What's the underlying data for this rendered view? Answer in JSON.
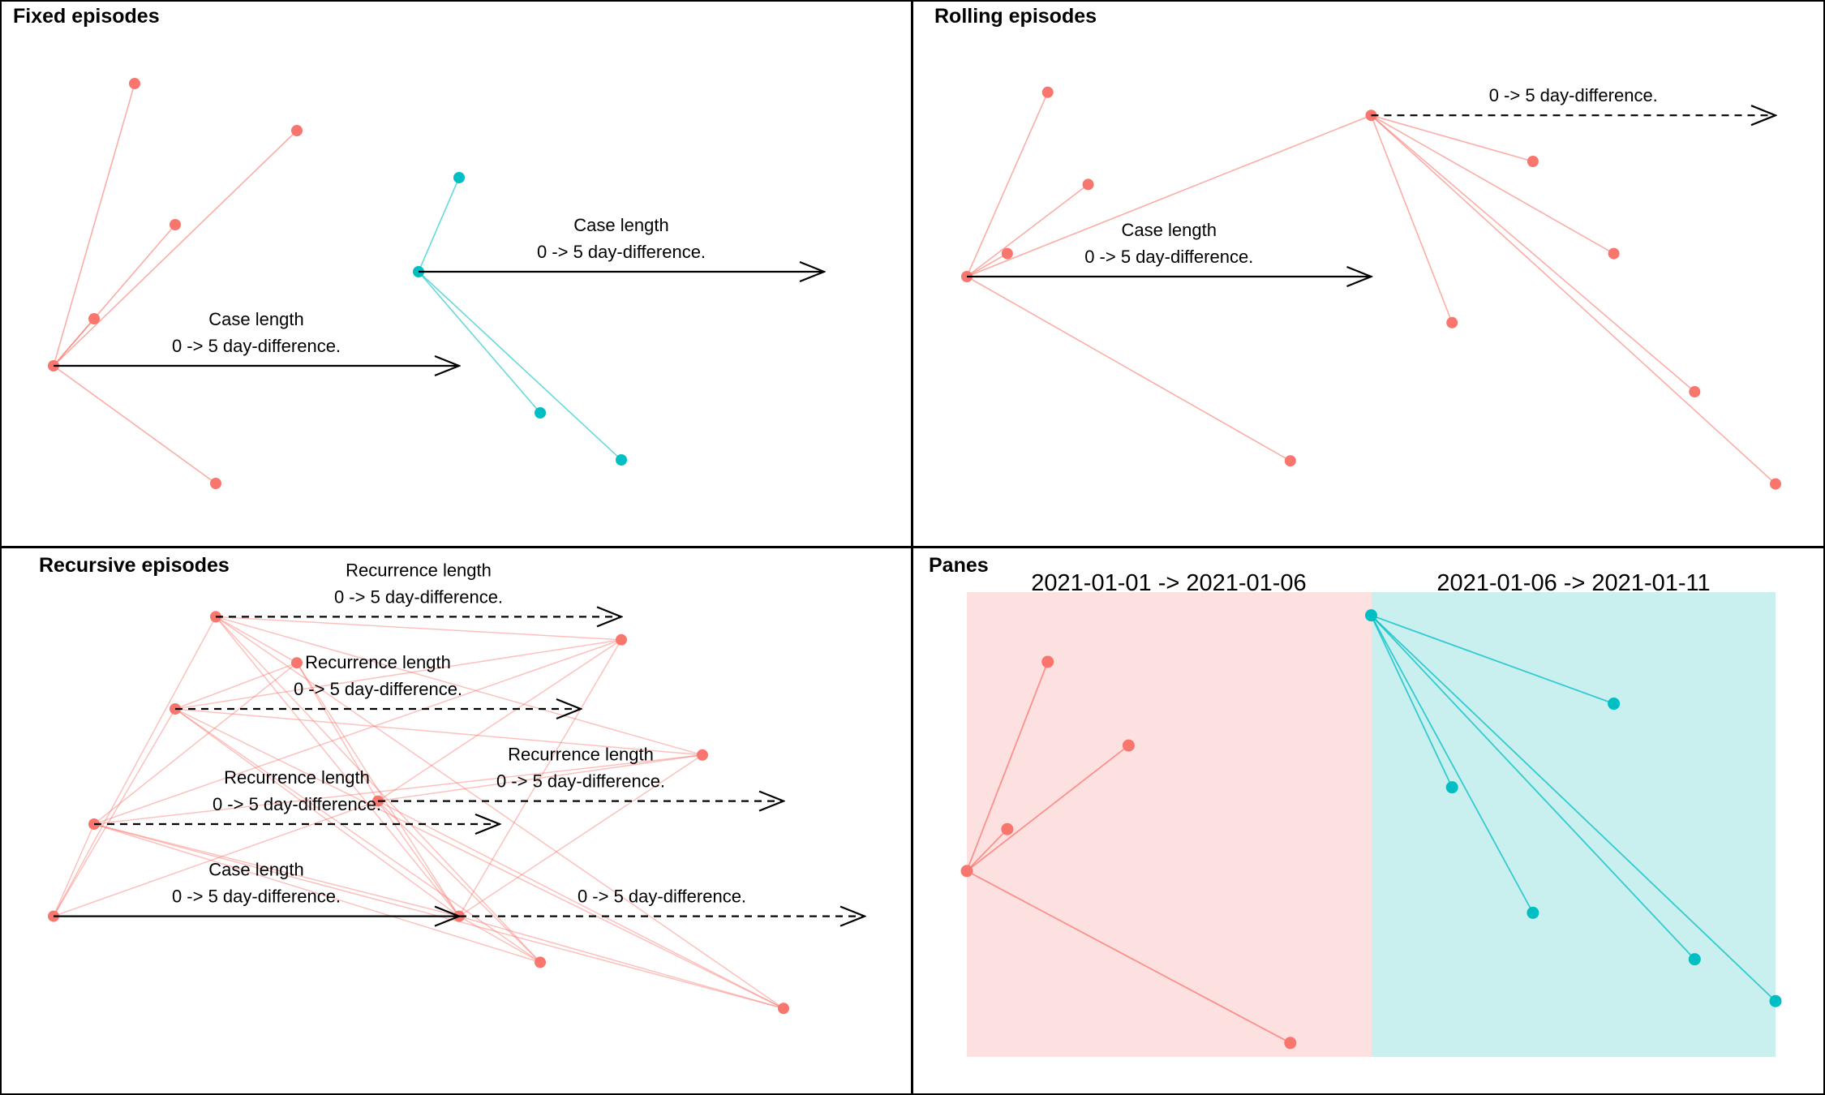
{
  "colors": {
    "red": "#F8766D",
    "teal": "#00BFC4",
    "red_pane": "#FDE1E0",
    "teal_pane": "#C9EFEF",
    "border": "#000000"
  },
  "panels": [
    {
      "id": "fixed",
      "title": "Fixed episodes",
      "points": [
        [
          0,
          0.3
        ],
        [
          0.5,
          0.4
        ],
        [
          1,
          0.9
        ],
        [
          1.5,
          0.6
        ],
        [
          2,
          0.05
        ],
        [
          3,
          0.8
        ],
        [
          4.5,
          0.5
        ],
        [
          5,
          0.7
        ],
        [
          6,
          0.2
        ],
        [
          7,
          0.1
        ]
      ],
      "point_colors": [
        "red",
        "red",
        "red",
        "red",
        "red",
        "red",
        "teal",
        "teal",
        "teal",
        "teal"
      ],
      "edges": [
        [
          0,
          1
        ],
        [
          0,
          2
        ],
        [
          0,
          3
        ],
        [
          0,
          4
        ],
        [
          0,
          5
        ],
        [
          6,
          7
        ],
        [
          6,
          8
        ],
        [
          6,
          9
        ]
      ],
      "edge_colors": [
        "red",
        "red",
        "red",
        "red",
        "red",
        "teal",
        "teal",
        "teal"
      ],
      "arrows": [
        {
          "from": 0,
          "days": 5,
          "style": "solid",
          "label": "Case length",
          "sublabel": "0 -> 5 day-difference."
        },
        {
          "from": 6,
          "days": 5,
          "style": "solid",
          "label": "Case length",
          "sublabel": "0 -> 5 day-difference."
        }
      ]
    },
    {
      "id": "rolling",
      "title": "Rolling episodes",
      "points": [
        [
          0,
          0.5
        ],
        [
          1,
          0.9
        ],
        [
          1.5,
          0.7
        ],
        [
          0.5,
          0.55
        ],
        [
          4,
          0.1
        ],
        [
          5,
          0.85
        ],
        [
          8,
          0.55
        ],
        [
          7,
          0.75
        ],
        [
          6,
          0.4
        ],
        [
          9,
          0.25
        ],
        [
          10,
          0.05
        ]
      ],
      "point_colors": [
        "red",
        "red",
        "red",
        "red",
        "red",
        "red",
        "red",
        "red",
        "red",
        "red",
        "red"
      ],
      "edges": [
        [
          0,
          1
        ],
        [
          0,
          2
        ],
        [
          0,
          3
        ],
        [
          0,
          4
        ],
        [
          0,
          5
        ],
        [
          5,
          6
        ],
        [
          5,
          7
        ],
        [
          5,
          8
        ],
        [
          5,
          9
        ],
        [
          5,
          10
        ]
      ],
      "edge_colors": [
        "red",
        "red",
        "red",
        "red",
        "red",
        "red",
        "red",
        "red",
        "red",
        "red"
      ],
      "arrows": [
        {
          "from": 0,
          "days": 5,
          "style": "solid",
          "label": "Case length",
          "sublabel": "0 -> 5 day-difference."
        },
        {
          "from": 5,
          "days": 5,
          "style": "dashed",
          "label": "",
          "sublabel": "0 -> 5 day-difference."
        }
      ]
    },
    {
      "id": "recursive",
      "title": "Recursive episodes",
      "points": [
        [
          0,
          0.3
        ],
        [
          0.5,
          0.5
        ],
        [
          2,
          0.95
        ],
        [
          1.5,
          0.75
        ],
        [
          4,
          0.55
        ],
        [
          5,
          0.3
        ],
        [
          3,
          0.85
        ],
        [
          6,
          0.2
        ],
        [
          7,
          0.9
        ],
        [
          8,
          0.65
        ],
        [
          9,
          0.1
        ]
      ],
      "point_colors": [
        "red",
        "red",
        "red",
        "red",
        "red",
        "red",
        "red",
        "red",
        "red",
        "red",
        "red"
      ],
      "edges": [
        [
          0,
          1
        ],
        [
          0,
          2
        ],
        [
          0,
          3
        ],
        [
          0,
          4
        ],
        [
          0,
          5
        ],
        [
          1,
          5
        ],
        [
          1,
          6
        ],
        [
          1,
          7
        ],
        [
          1,
          8
        ],
        [
          1,
          9
        ],
        [
          1,
          10
        ],
        [
          2,
          5
        ],
        [
          2,
          6
        ],
        [
          2,
          7
        ],
        [
          2,
          8
        ],
        [
          2,
          9
        ],
        [
          2,
          10
        ],
        [
          3,
          5
        ],
        [
          3,
          6
        ],
        [
          3,
          7
        ],
        [
          3,
          8
        ],
        [
          3,
          9
        ],
        [
          3,
          10
        ],
        [
          4,
          5
        ],
        [
          4,
          6
        ],
        [
          4,
          7
        ],
        [
          4,
          8
        ],
        [
          4,
          9
        ],
        [
          4,
          10
        ],
        [
          5,
          6
        ],
        [
          5,
          7
        ],
        [
          5,
          8
        ],
        [
          5,
          9
        ],
        [
          5,
          10
        ]
      ],
      "edge_colors": [],
      "arrows": [
        {
          "from": 0,
          "days": 5,
          "style": "solid",
          "label": "Case length",
          "sublabel": "0 -> 5 day-difference."
        },
        {
          "from": 1,
          "days": 5,
          "style": "dashed",
          "label": "Recurrence length",
          "sublabel": "0 -> 5 day-difference."
        },
        {
          "from": 2,
          "days": 5,
          "style": "dashed",
          "label": "Recurrence length",
          "sublabel": "0 -> 5 day-difference."
        },
        {
          "from": 3,
          "days": 5,
          "style": "dashed",
          "label": "Recurrence length",
          "sublabel": "0 -> 5 day-difference."
        },
        {
          "from": 4,
          "days": 5,
          "style": "dashed",
          "label": "Recurrence length",
          "sublabel": "0 -> 5 day-difference."
        },
        {
          "from": 5,
          "days": 5,
          "style": "dashed",
          "label": "",
          "sublabel": "0 -> 5 day-difference."
        }
      ]
    },
    {
      "id": "panes",
      "title": "Panes",
      "pane_labels": [
        "2021-01-01 -> 2021-01-06",
        "2021-01-06 -> 2021-01-11"
      ],
      "points": [
        [
          0,
          0.4
        ],
        [
          1,
          0.85
        ],
        [
          2,
          0.67
        ],
        [
          0.5,
          0.49
        ],
        [
          4,
          0.03
        ],
        [
          5,
          0.95
        ],
        [
          8,
          0.76
        ],
        [
          6,
          0.58
        ],
        [
          7,
          0.31
        ],
        [
          9,
          0.21
        ],
        [
          10,
          0.12
        ]
      ],
      "point_colors": [
        "red",
        "red",
        "red",
        "red",
        "red",
        "teal",
        "teal",
        "teal",
        "teal",
        "teal",
        "teal"
      ],
      "edges": [
        [
          0,
          1
        ],
        [
          0,
          2
        ],
        [
          0,
          3
        ],
        [
          0,
          4
        ],
        [
          5,
          6
        ],
        [
          5,
          7
        ],
        [
          5,
          8
        ],
        [
          5,
          9
        ],
        [
          5,
          10
        ]
      ],
      "edge_colors": [
        "red",
        "red",
        "red",
        "red",
        "teal",
        "teal",
        "teal",
        "teal",
        "teal"
      ],
      "arrows": []
    }
  ]
}
